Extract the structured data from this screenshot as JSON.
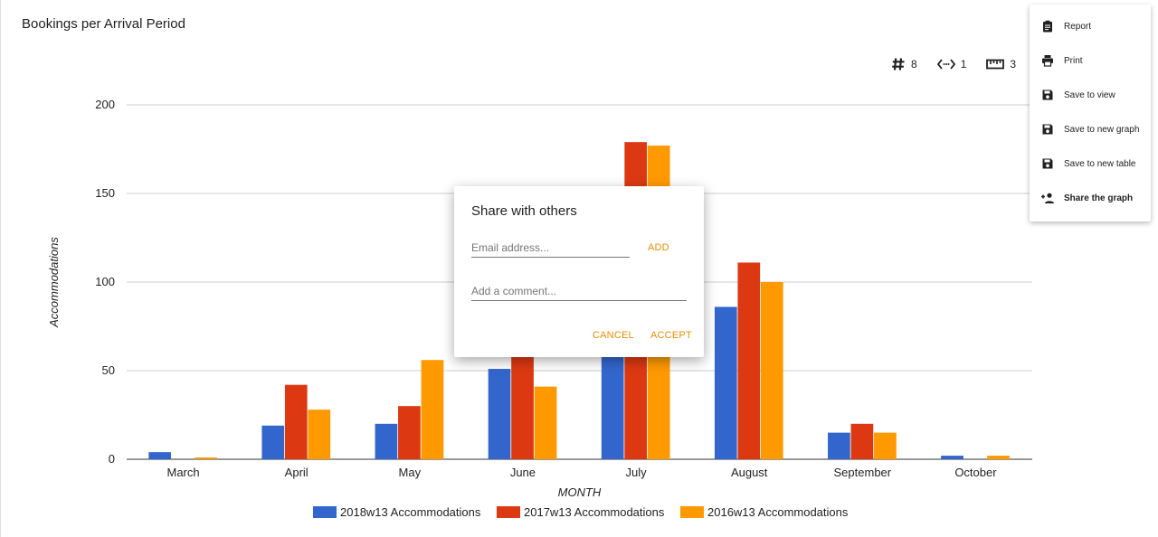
{
  "title": "Bookings per Arrival Period",
  "stats": [
    {
      "icon": "hash-icon",
      "value": "8"
    },
    {
      "icon": "code-arrows-icon",
      "value": "1"
    },
    {
      "icon": "ruler-icon",
      "value": "3"
    }
  ],
  "menu": {
    "items": [
      {
        "label": "Report",
        "icon": "clipboard-icon"
      },
      {
        "label": "Print",
        "icon": "print-icon"
      },
      {
        "label": "Save to view",
        "icon": "save-icon"
      },
      {
        "label": "Save to new graph",
        "icon": "save-icon"
      },
      {
        "label": "Save to new table",
        "icon": "save-icon"
      },
      {
        "label": "Share the graph",
        "icon": "person-add-icon"
      }
    ]
  },
  "dialog": {
    "title": "Share with others",
    "email_placeholder": "Email address...",
    "add_label": "ADD",
    "comment_placeholder": "Add a comment...",
    "cancel_label": "CANCEL",
    "accept_label": "ACCEPT"
  },
  "chart_data": {
    "type": "bar",
    "xlabel": "MONTH",
    "ylabel": "Accommodations",
    "ylim": [
      0,
      200
    ],
    "yticks": [
      0,
      50,
      100,
      150,
      200
    ],
    "grid": true,
    "legend_position": "bottom",
    "categories": [
      "March",
      "April",
      "May",
      "June",
      "July",
      "August",
      "September",
      "October"
    ],
    "series": [
      {
        "name": "2018w13 Accommodations",
        "color": "#3366cc",
        "values": [
          4,
          19,
          20,
          51,
          75,
          86,
          15,
          2
        ]
      },
      {
        "name": "2017w13 Accommodations",
        "color": "#dc3912",
        "values": [
          0,
          42,
          30,
          80,
          179,
          111,
          20,
          0
        ]
      },
      {
        "name": "2016w13 Accommodations",
        "color": "#ff9900",
        "values": [
          1,
          28,
          56,
          41,
          177,
          100,
          15,
          2
        ]
      }
    ]
  }
}
